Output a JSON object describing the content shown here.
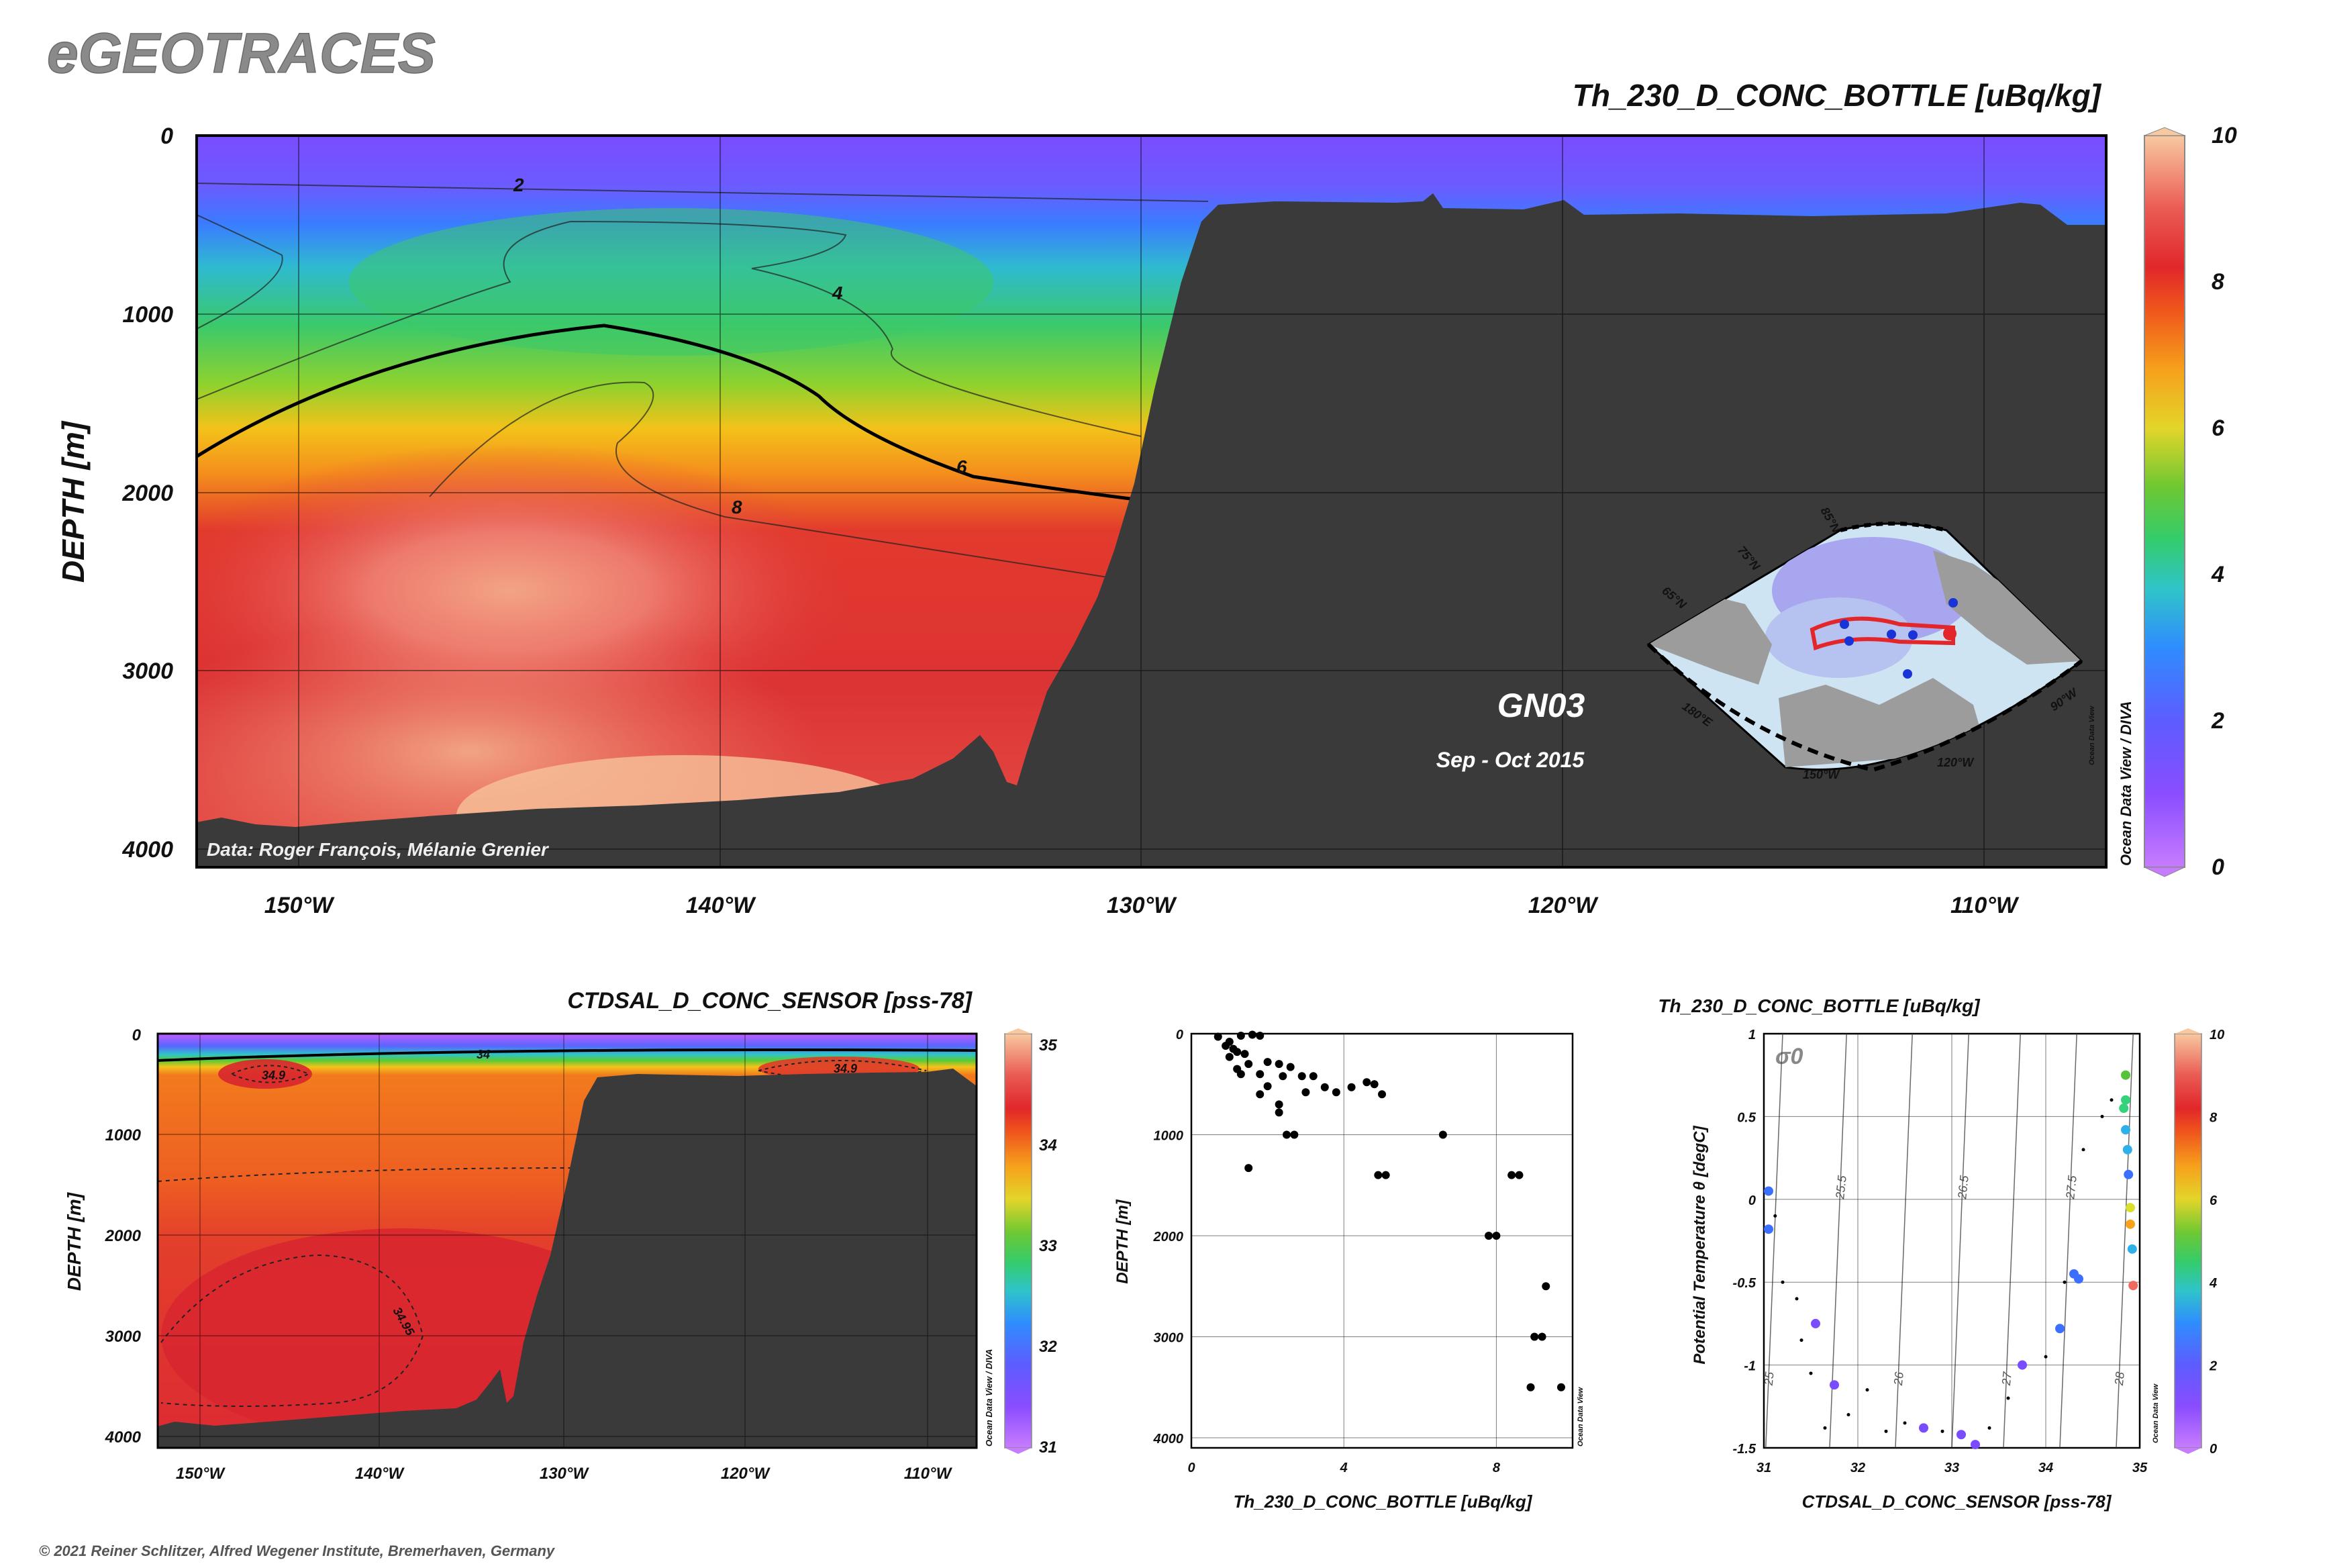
{
  "header": {
    "logo_text": "eGEOTRACES",
    "copyright": "© 2021 Reiner Schlitzer, Alfred Wegener Institute, Bremerhaven, Germany"
  },
  "main_section": {
    "title": "Th_230_D_CONC_BOTTLE [uBq/kg]",
    "ylabel": "DEPTH [m]",
    "y_ticks": [
      "0",
      "1000",
      "2000",
      "3000",
      "4000"
    ],
    "x_ticks": [
      "150°W",
      "140°W",
      "130°W",
      "120°W",
      "110°W"
    ],
    "colorbar_ticks": [
      "0",
      "2",
      "4",
      "6",
      "8",
      "10"
    ],
    "contour_labels": [
      "2",
      "4",
      "6",
      "8"
    ],
    "cruise": "GN03",
    "dates": "Sep - Oct 2015",
    "credit": "Data: Roger François, Mélanie Grenier",
    "odv_note": "Ocean Data View / DIVA",
    "map_labels": [
      "85°N",
      "75°N",
      "65°N",
      "180°E",
      "150°W",
      "120°W",
      "90°W"
    ]
  },
  "sal_section": {
    "title": "CTDSAL_D_CONC_SENSOR [pss-78]",
    "ylabel": "DEPTH [m]",
    "y_ticks": [
      "0",
      "1000",
      "2000",
      "3000",
      "4000"
    ],
    "x_ticks": [
      "150°W",
      "140°W",
      "130°W",
      "120°W",
      "110°W"
    ],
    "colorbar_ticks": [
      "35",
      "34",
      "33",
      "32",
      "31"
    ],
    "contour_labels": [
      "34",
      "34.9",
      "34.9",
      "34.95"
    ],
    "odv_note": "Ocean Data View / DIVA"
  },
  "colors": {
    "seafloor": "#3a3a3a",
    "scale": [
      "#c77cff",
      "#7a4cff",
      "#3b6fff",
      "#2fb0e8",
      "#34d27a",
      "#55c43a",
      "#d8e02a",
      "#f9a21a",
      "#f0581d",
      "#e2292a",
      "#ee6a5e",
      "#f9c79e"
    ]
  },
  "chart_data": [
    {
      "type": "scatter",
      "title": "",
      "xlabel": "Th_230_D_CONC_BOTTLE [uBq/kg]",
      "ylabel": "DEPTH [m]",
      "xlim": [
        0,
        10
      ],
      "ylim": [
        4100,
        0
      ],
      "x_ticks": [
        "0",
        "4",
        "8"
      ],
      "y_ticks": [
        "0",
        "1000",
        "2000",
        "3000",
        "4000"
      ],
      "odv_note": "Ocean Data View",
      "points": [
        [
          0.7,
          30
        ],
        [
          1.0,
          80
        ],
        [
          1.3,
          20
        ],
        [
          1.6,
          10
        ],
        [
          1.8,
          20
        ],
        [
          0.9,
          120
        ],
        [
          1.1,
          150
        ],
        [
          1.2,
          180
        ],
        [
          1.4,
          200
        ],
        [
          1.0,
          230
        ],
        [
          2.0,
          280
        ],
        [
          1.5,
          300
        ],
        [
          2.6,
          330
        ],
        [
          2.3,
          300
        ],
        [
          1.2,
          350
        ],
        [
          1.3,
          400
        ],
        [
          1.8,
          400
        ],
        [
          2.4,
          420
        ],
        [
          2.9,
          420
        ],
        [
          3.2,
          420
        ],
        [
          2.0,
          520
        ],
        [
          3.5,
          530
        ],
        [
          4.2,
          530
        ],
        [
          4.8,
          500
        ],
        [
          4.6,
          480
        ],
        [
          3.0,
          580
        ],
        [
          3.8,
          580
        ],
        [
          5.0,
          600
        ],
        [
          1.8,
          600
        ],
        [
          2.3,
          700
        ],
        [
          2.3,
          780
        ],
        [
          2.5,
          1000
        ],
        [
          2.7,
          1000
        ],
        [
          1.5,
          1330
        ],
        [
          4.9,
          1400
        ],
        [
          5.1,
          1400
        ],
        [
          6.6,
          1000
        ],
        [
          8.4,
          1400
        ],
        [
          8.6,
          1400
        ],
        [
          7.8,
          2000
        ],
        [
          8.0,
          2000
        ],
        [
          9.3,
          2500
        ],
        [
          9.0,
          3000
        ],
        [
          9.2,
          3000
        ],
        [
          8.9,
          3500
        ],
        [
          9.7,
          3500
        ]
      ]
    },
    {
      "type": "scatter",
      "title": "Th_230_D_CONC_BOTTLE [uBq/kg]",
      "xlabel": "CTDSAL_D_CONC_SENSOR [pss-78]",
      "ylabel": "Potential Temperature θ [degC]",
      "xlim": [
        31,
        35
      ],
      "ylim": [
        -1.5,
        1
      ],
      "x_ticks": [
        "31",
        "32",
        "33",
        "34",
        "35"
      ],
      "y_ticks": [
        "1",
        "0.5",
        "0",
        "-0.5",
        "-1",
        "-1.5"
      ],
      "colorbar_ticks": [
        "0",
        "2",
        "4",
        "6",
        "8",
        "10"
      ],
      "isopycnal_labels": [
        "25",
        "25.5",
        "26",
        "26.5",
        "27",
        "27.5",
        "28"
      ],
      "sigma_label": "σ0",
      "odv_note": "Ocean Data View",
      "points_colored": [
        [
          31.05,
          0.05,
          1.8
        ],
        [
          31.05,
          -0.18,
          1.5
        ],
        [
          31.55,
          -0.75,
          1.2
        ],
        [
          31.75,
          -1.12,
          1.0
        ],
        [
          32.7,
          -1.38,
          0.9
        ],
        [
          33.1,
          -1.42,
          0.8
        ],
        [
          33.25,
          -1.48,
          0.8
        ],
        [
          33.75,
          -1.0,
          1.2
        ],
        [
          34.15,
          -0.78,
          1.5
        ],
        [
          34.3,
          -0.45,
          1.7
        ],
        [
          34.35,
          -0.48,
          1.6
        ],
        [
          34.85,
          0.75,
          4.5
        ],
        [
          34.85,
          0.6,
          4.0
        ],
        [
          34.83,
          0.55,
          3.6
        ],
        [
          34.85,
          0.42,
          3.0
        ],
        [
          34.87,
          0.3,
          2.5
        ],
        [
          34.88,
          0.15,
          2.2
        ],
        [
          34.9,
          -0.05,
          5.0
        ],
        [
          34.9,
          -0.15,
          6.0
        ],
        [
          34.92,
          -0.3,
          2.5
        ],
        [
          34.93,
          -0.52,
          9.0
        ]
      ],
      "points_small": [
        [
          31.12,
          -0.1
        ],
        [
          31.2,
          -0.5
        ],
        [
          31.35,
          -0.6
        ],
        [
          31.4,
          -0.85
        ],
        [
          31.5,
          -1.05
        ],
        [
          31.65,
          -1.38
        ],
        [
          31.9,
          -1.3
        ],
        [
          32.1,
          -1.15
        ],
        [
          32.3,
          -1.4
        ],
        [
          32.5,
          -1.35
        ],
        [
          32.9,
          -1.4
        ],
        [
          33.4,
          -1.38
        ],
        [
          33.6,
          -1.2
        ],
        [
          34.0,
          -0.95
        ],
        [
          34.2,
          -0.5
        ],
        [
          34.4,
          0.3
        ],
        [
          34.6,
          0.5
        ],
        [
          34.7,
          0.6
        ]
      ]
    }
  ]
}
